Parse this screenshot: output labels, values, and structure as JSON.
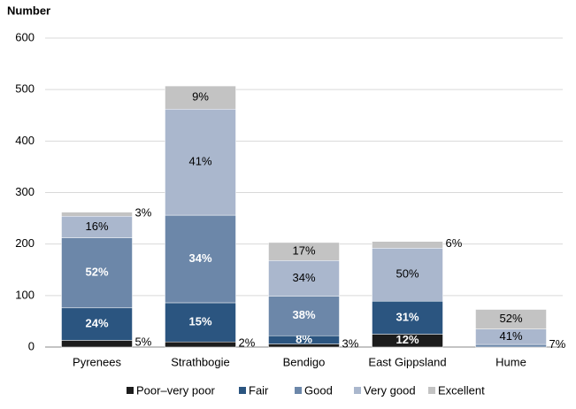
{
  "chart_data": {
    "type": "stacked-bar",
    "y_label": "Number",
    "categories": [
      "Pyrenees",
      "Strathbogie",
      "Bendigo",
      "East Gippsland",
      "Hume"
    ],
    "series": [
      {
        "name": "Poor–very poor",
        "color": "#1c1c1c",
        "values": [
          13,
          10,
          6,
          25,
          0
        ],
        "percent_labels": [
          "5%",
          "2%",
          "3%",
          "12%",
          null
        ]
      },
      {
        "name": "Fair",
        "color": "#2b5580",
        "values": [
          63,
          76,
          16,
          64,
          0
        ],
        "percent_labels": [
          "24%",
          "15%",
          "8%",
          "31%",
          null
        ]
      },
      {
        "name": "Good",
        "color": "#6c87a9",
        "values": [
          136,
          170,
          77,
          0,
          5
        ],
        "percent_labels": [
          "52%",
          "34%",
          "38%",
          null,
          "7%"
        ]
      },
      {
        "name": "Very good",
        "color": "#aab7cd",
        "values": [
          42,
          206,
          69,
          103,
          30
        ],
        "percent_labels": [
          "16%",
          "41%",
          "34%",
          "50%",
          "41%"
        ]
      },
      {
        "name": "Excellent",
        "color": "#c3c3c3",
        "values": [
          8,
          45,
          35,
          13,
          38
        ],
        "percent_labels": [
          "3%",
          "9%",
          "17%",
          "6%",
          "52%"
        ]
      }
    ],
    "ylim": [
      0,
      600
    ],
    "yticks": [
      0,
      100,
      200,
      300,
      400,
      500,
      600
    ],
    "grid": true
  }
}
